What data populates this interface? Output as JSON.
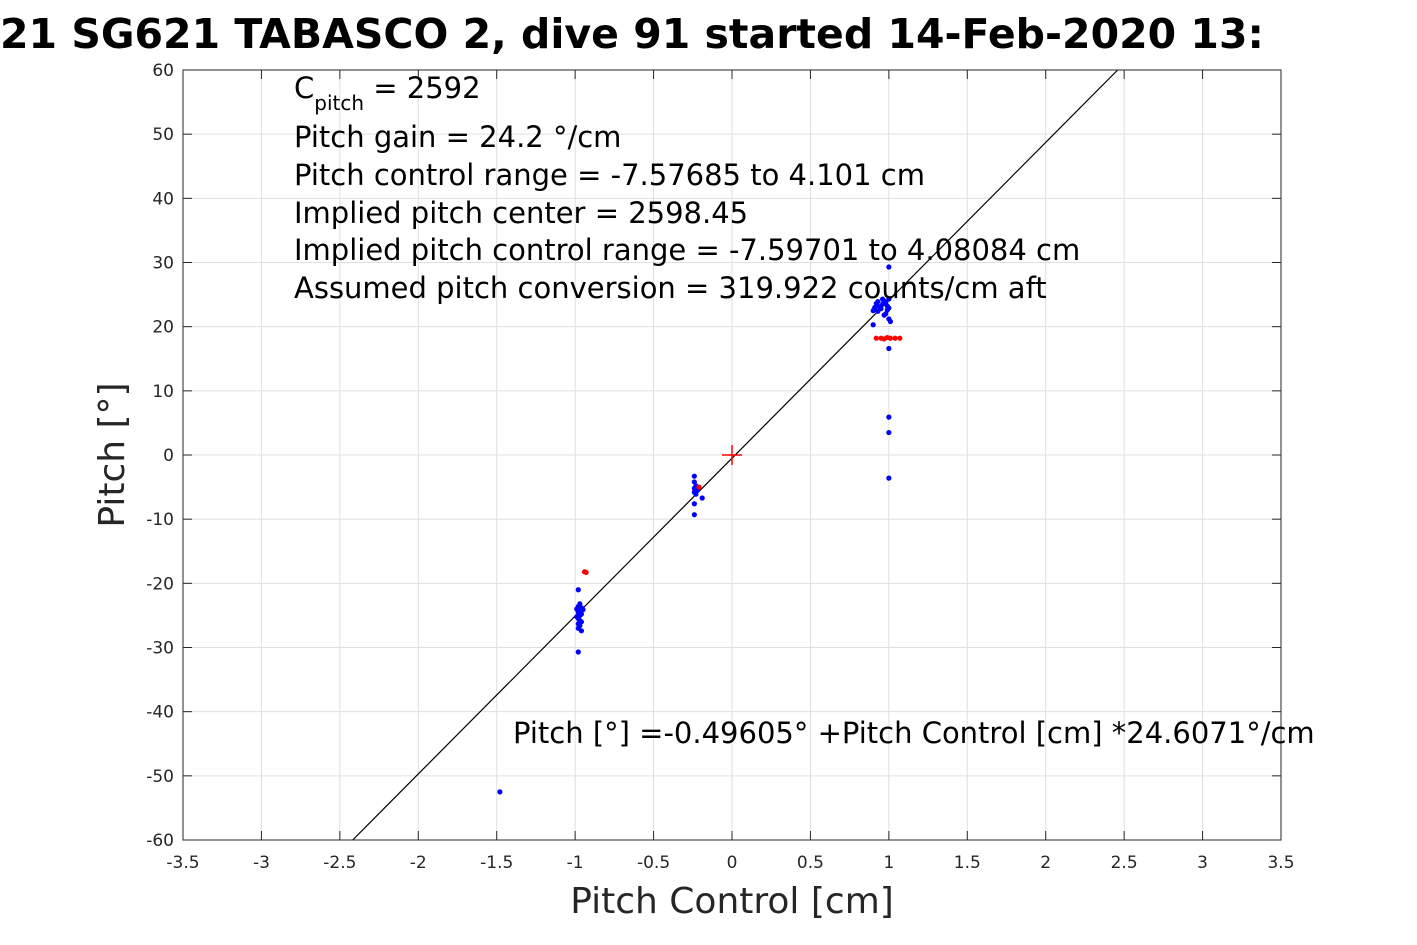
{
  "chart_data": {
    "type": "scatter",
    "title": "21 SG621 TABASCO 2, dive 91 started 14-Feb-2020 13:",
    "xlabel": "Pitch Control [cm]",
    "ylabel": "Pitch [°]",
    "xlim": [
      -3.5,
      3.5
    ],
    "ylim": [
      -60,
      60
    ],
    "xticks": [
      -3.5,
      -3,
      -2.5,
      -2,
      -1.5,
      -1,
      -0.5,
      0,
      0.5,
      1,
      1.5,
      2,
      2.5,
      3,
      3.5
    ],
    "yticks": [
      -60,
      -50,
      -40,
      -30,
      -20,
      -10,
      0,
      10,
      20,
      30,
      40,
      50,
      60
    ],
    "xtick_labels": [
      "-3.5",
      "-3",
      "-2.5",
      "-2",
      "-1.5",
      "-1",
      "-0.5",
      "0",
      "0.5",
      "1",
      "1.5",
      "2",
      "2.5",
      "3",
      "3.5"
    ],
    "ytick_labels": [
      "-60",
      "-50",
      "-40",
      "-30",
      "-20",
      "-10",
      "0",
      "10",
      "20",
      "30",
      "40",
      "50",
      "60"
    ],
    "grid": true,
    "annotations": {
      "c_pitch_main": "C",
      "c_pitch_sub": "pitch",
      "c_pitch_value": " = 2592",
      "lines": [
        "Pitch gain = 24.2 °/cm",
        "Pitch control range = -7.57685 to 4.101 cm",
        "Implied pitch center = 2598.45",
        "Implied pitch control range = -7.59701 to 4.08084 cm",
        "Assumed pitch conversion = 319.922 counts/cm aft"
      ],
      "fit_equation": "Pitch [°] =-0.49605° +Pitch Control [cm] *24.6071°/cm"
    },
    "fit_line": {
      "intercept": -0.49605,
      "slope": 24.6071,
      "color": "#000000"
    },
    "center_marker": {
      "x": 0,
      "y": 0,
      "color": "#ff0000"
    },
    "series": [
      {
        "color": "#0000ff",
        "points": [
          [
            -1.48,
            -52.5
          ],
          [
            -0.98,
            -21.0
          ],
          [
            -0.97,
            -23.2
          ],
          [
            -0.98,
            -23.6
          ],
          [
            -0.96,
            -23.8
          ],
          [
            -0.99,
            -24.0
          ],
          [
            -0.97,
            -24.2
          ],
          [
            -0.98,
            -24.5
          ],
          [
            -0.96,
            -24.8
          ],
          [
            -0.97,
            -25.0
          ],
          [
            -0.99,
            -25.2
          ],
          [
            -0.98,
            -25.5
          ],
          [
            -0.97,
            -25.8
          ],
          [
            -0.96,
            -26.0
          ],
          [
            -0.98,
            -26.3
          ],
          [
            -0.97,
            -26.6
          ],
          [
            -0.98,
            -27.0
          ],
          [
            -0.96,
            -27.4
          ],
          [
            -0.97,
            -24.4
          ],
          [
            -0.95,
            -24.1
          ],
          [
            -0.98,
            -30.7
          ],
          [
            -0.24,
            -3.3
          ],
          [
            -0.24,
            -4.2
          ],
          [
            -0.23,
            -4.8
          ],
          [
            -0.24,
            -5.2
          ],
          [
            -0.22,
            -5.5
          ],
          [
            -0.24,
            -5.8
          ],
          [
            -0.23,
            -6.1
          ],
          [
            -0.24,
            -7.6
          ],
          [
            -0.24,
            -9.3
          ],
          [
            -0.19,
            -6.7
          ],
          [
            0.9,
            20.3
          ],
          [
            0.9,
            22.5
          ],
          [
            0.91,
            23.0
          ],
          [
            0.92,
            23.6
          ],
          [
            0.93,
            22.4
          ],
          [
            0.94,
            23.1
          ],
          [
            0.95,
            22.8
          ],
          [
            0.96,
            23.5
          ],
          [
            0.97,
            21.8
          ],
          [
            0.97,
            24.0
          ],
          [
            0.98,
            22.0
          ],
          [
            0.98,
            23.8
          ],
          [
            0.99,
            22.6
          ],
          [
            1.0,
            24.3
          ],
          [
            1.0,
            21.2
          ],
          [
            1.01,
            20.8
          ],
          [
            1.0,
            22.9
          ],
          [
            0.96,
            24.3
          ],
          [
            0.93,
            23.9
          ],
          [
            0.99,
            23.2
          ],
          [
            1.0,
            29.3
          ],
          [
            1.0,
            16.6
          ],
          [
            1.0,
            5.9
          ],
          [
            1.0,
            3.5
          ],
          [
            1.0,
            -3.6
          ]
        ]
      },
      {
        "color": "#ff0000",
        "points": [
          [
            -0.94,
            -18.2
          ],
          [
            -0.93,
            -18.3
          ],
          [
            -0.21,
            -5.0
          ],
          [
            0.92,
            18.2
          ],
          [
            0.95,
            18.2
          ],
          [
            0.97,
            18.1
          ],
          [
            0.99,
            18.3
          ],
          [
            1.01,
            18.2
          ],
          [
            1.04,
            18.2
          ],
          [
            1.07,
            18.2
          ]
        ]
      }
    ]
  }
}
